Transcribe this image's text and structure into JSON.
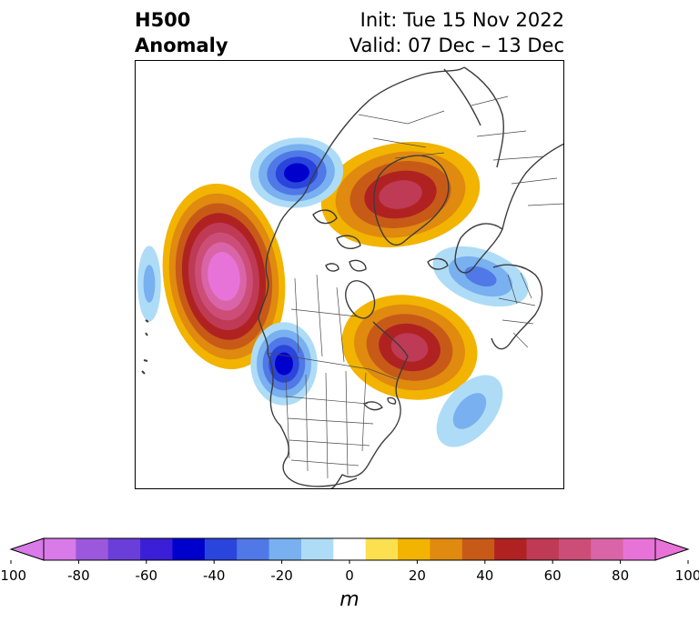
{
  "title": {
    "line1": "H500",
    "line2": "Anomaly",
    "init": "Init: Tue 15 Nov 2022",
    "valid": "Valid: 07 Dec – 13 Dec"
  },
  "colorbar": {
    "unit": "m",
    "min": -100,
    "max": 100,
    "step": 10,
    "extend": "both",
    "tick_labels": [
      "-100",
      "-80",
      "-60",
      "-40",
      "-20",
      "0",
      "20",
      "40",
      "60",
      "80",
      "100"
    ],
    "colors": [
      "#d87ae8",
      "#9c58dc",
      "#6a3ed8",
      "#3a1fd6",
      "#0000cc",
      "#2a45dc",
      "#5078e6",
      "#78b0f0",
      "#aedcf7",
      "#ffffff",
      "#fde04f",
      "#f2b400",
      "#e08a10",
      "#c85a18",
      "#b02222",
      "#be3a55",
      "#cc4e78",
      "#d965a8",
      "#e873d8"
    ],
    "low_extend_color": "#d87ae8",
    "high_extend_color": "#e873d8"
  },
  "anomalies": [
    {
      "name": "gulf-of-alaska-ridge",
      "sign": "positive",
      "peak": 95
    },
    {
      "name": "hudson-bay-ridge",
      "sign": "positive",
      "peak": 55
    },
    {
      "name": "siberia-ridge",
      "sign": "positive",
      "peak": 55
    },
    {
      "name": "western-us-trough",
      "sign": "negative",
      "peak": -55
    },
    {
      "name": "arctic-trough",
      "sign": "negative",
      "peak": -55
    },
    {
      "name": "atlantic-trough",
      "sign": "negative",
      "peak": -20
    },
    {
      "name": "north-atlantic-trough",
      "sign": "negative",
      "peak": -30
    },
    {
      "name": "north-pacific-trough",
      "sign": "negative",
      "peak": -20
    }
  ]
}
